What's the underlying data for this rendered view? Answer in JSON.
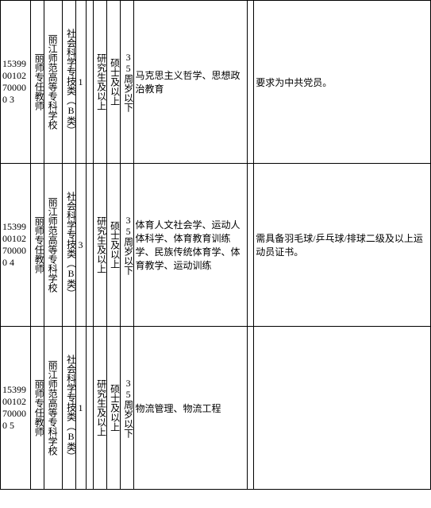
{
  "rows": [
    {
      "code": "1539900102700000\n3",
      "post": "丽师专任教师",
      "school": "丽江师范高等专科学校",
      "category": "社会科学专技类（B类）",
      "count": "1",
      "blank1": "",
      "edu": "研究生及以上",
      "degree": "硕士及以上",
      "age": "35周岁以下",
      "major": "马克思主义哲学、思想政治教育",
      "blank2": "",
      "req": "要求为中共党员。"
    },
    {
      "code": "1539900102700000\n4",
      "post": "丽师专任教师",
      "school": "丽江师范高等专科学校",
      "category": "社会科学专技类（B类）",
      "count": "3",
      "blank1": "",
      "edu": "研究生及以上",
      "degree": "硕士及以上",
      "age": "35周岁以下",
      "major": "体育人文社会学、运动人体科学、体育教育训练学、民族传统体育学、体育教学、运动训练",
      "blank2": "",
      "req": "需具备羽毛球/乒乓球/排球二级及以上运动员证书。"
    },
    {
      "code": "1539900102700000\n5",
      "post": "丽师专任教师",
      "school": "丽江师范高等专科学校",
      "category": "社会科学专技类（B类）",
      "count": "1",
      "blank1": "",
      "edu": "研究生及以上",
      "degree": "硕士及以上",
      "age": "35周岁以下",
      "major": "物流管理、物流工程",
      "blank2": "",
      "req": ""
    }
  ]
}
